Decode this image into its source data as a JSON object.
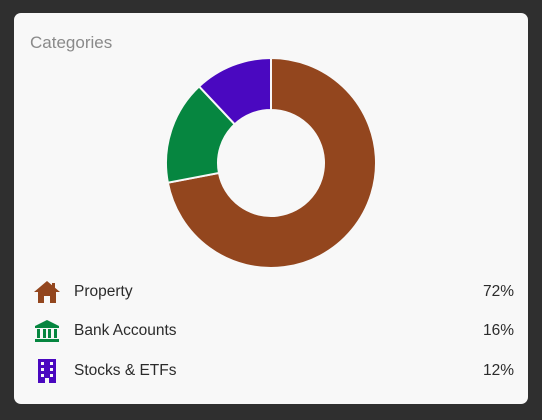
{
  "card": {
    "title": "Categories"
  },
  "chart_data": {
    "type": "pie",
    "categories": [
      "Property",
      "Bank Accounts",
      "Stocks & ETFs"
    ],
    "values": [
      72,
      16,
      12
    ],
    "colors": [
      "#93461e",
      "#068640",
      "#4a08c0"
    ],
    "donut": true
  },
  "legend": {
    "items": [
      {
        "label": "Property",
        "value": "72%",
        "icon": "house-icon",
        "color": "#93461e"
      },
      {
        "label": "Bank Accounts",
        "value": "16%",
        "icon": "bank-icon",
        "color": "#068640"
      },
      {
        "label": "Stocks & ETFs",
        "value": "12%",
        "icon": "office-building-icon",
        "color": "#4a08c0"
      }
    ]
  }
}
